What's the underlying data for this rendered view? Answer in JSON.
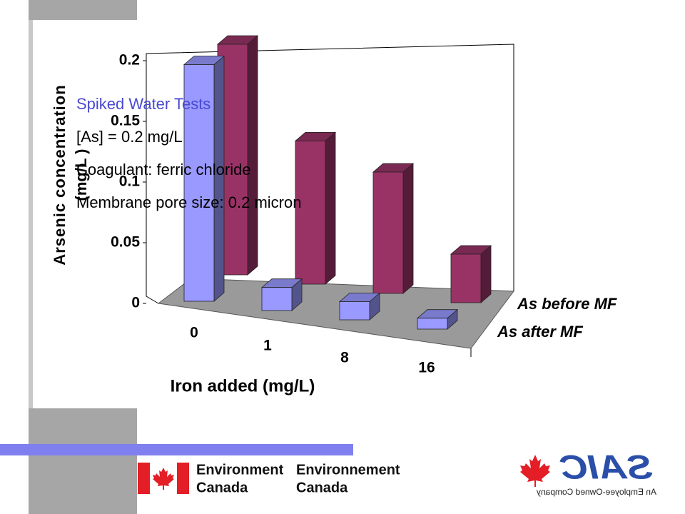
{
  "chart_data": {
    "type": "bar3d",
    "y_label": [
      "Arsenic concentration",
      "(mg/L )"
    ],
    "x_label": "Iron added (mg/L)",
    "categories": [
      "0",
      "1",
      "8",
      "16"
    ],
    "series": [
      {
        "name": "As before MF",
        "color": "#993366",
        "values": [
          0.19,
          0.118,
          0.1,
          0.04
        ]
      },
      {
        "name": "As after MF",
        "color": "#9999ff",
        "values": [
          0.195,
          0.019,
          0.015,
          0.009
        ]
      }
    ],
    "ylim": [
      0,
      0.2
    ],
    "yticks": [
      0,
      0.05,
      0.1,
      0.15,
      0.2
    ],
    "annotations": [
      "Spiked Water Tests",
      "[As] = 0.2 mg/L",
      "Coagulant: ferric chloride",
      "Membrane pore size: 0.2 micron"
    ]
  },
  "footer": {
    "environment": [
      "Environment",
      "Canada"
    ],
    "environnement": [
      "Environnement",
      "Canada"
    ],
    "saic": "SAIC",
    "tagline": "An Employee-Owned Company"
  }
}
